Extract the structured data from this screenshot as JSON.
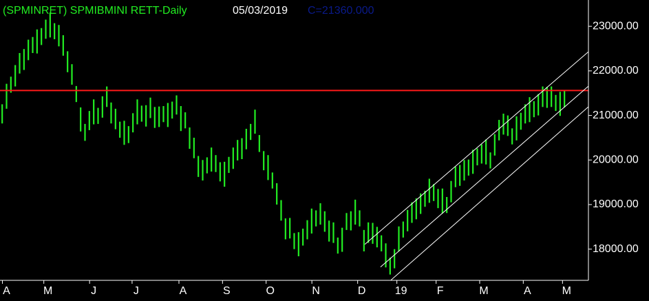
{
  "chart_data": {
    "type": "range_bar",
    "title": "(SPMINRET) SPMIBMINI RETT-Daily",
    "date": "05/03/2019",
    "last_close": "C=21360.000",
    "background": "#000000",
    "xlim": [
      0,
      270
    ],
    "ylim": [
      17300,
      23590
    ],
    "xticks": [
      {
        "value": 3,
        "label": "A"
      },
      {
        "value": 22,
        "label": "M"
      },
      {
        "value": 43,
        "label": "J"
      },
      {
        "value": 62.5,
        "label": "J"
      },
      {
        "value": 84,
        "label": "A"
      },
      {
        "value": 104,
        "label": "S"
      },
      {
        "value": 124,
        "label": "O"
      },
      {
        "value": 145,
        "label": "N"
      },
      {
        "value": 166,
        "label": "D"
      },
      {
        "value": 184,
        "label": "19"
      },
      {
        "value": 202,
        "label": "F"
      },
      {
        "value": 222,
        "label": "M"
      },
      {
        "value": 242,
        "label": "A"
      },
      {
        "value": 260,
        "label": "M"
      }
    ],
    "yticks": [
      {
        "value": 18000,
        "label": "18000.00"
      },
      {
        "value": 19000,
        "label": "19000.00"
      },
      {
        "value": 20000,
        "label": "20000.00"
      },
      {
        "value": 21000,
        "label": "21000.00"
      },
      {
        "value": 22000,
        "label": "22000.00"
      },
      {
        "value": 23000,
        "label": "23000.00"
      }
    ],
    "hline": {
      "value": 21560,
      "color": "#ff1a1a"
    },
    "trend_lines": [
      {
        "x": [
          167.4,
          270
        ],
        "y": [
          18108,
          22429
        ],
        "color": "#ffffff"
      },
      {
        "x": [
          174.6,
          270
        ],
        "y": [
          17599,
          21657
        ],
        "color": "#ffffff"
      },
      {
        "x": [
          179.4,
          270
        ],
        "y": [
          17306,
          21194
        ],
        "color": "#ffffff"
      }
    ],
    "series": [
      {
        "color": "#22ee22",
        "x": [
          1,
          3,
          5,
          7,
          9,
          11,
          13,
          15,
          17,
          19,
          21,
          23,
          25,
          27,
          29,
          31,
          33,
          35,
          37,
          39,
          41,
          43,
          45,
          47,
          49,
          51,
          53,
          55,
          57,
          59,
          61,
          63,
          65,
          67,
          69,
          71,
          73,
          75,
          77,
          79,
          81,
          83,
          85,
          87,
          89,
          91,
          93,
          95,
          97,
          99,
          101,
          103,
          105,
          107,
          109,
          111,
          113,
          115,
          117,
          119,
          121,
          123,
          125,
          127,
          129,
          131,
          133,
          135,
          137,
          139,
          141,
          143,
          145,
          147,
          149,
          151,
          153,
          155,
          157,
          159,
          161,
          163,
          165,
          167,
          169,
          171,
          173,
          175,
          177,
          179,
          181,
          183,
          185,
          187,
          189,
          191,
          193,
          195,
          197,
          199,
          201,
          203,
          205,
          207,
          209,
          211,
          213,
          215,
          217,
          219,
          221,
          223,
          225,
          227,
          229,
          231,
          233,
          235,
          237,
          239,
          241,
          243,
          245,
          247,
          249,
          251,
          253,
          255,
          257,
          259
        ],
        "high": [
          21250,
          21710,
          21870,
          22130,
          22400,
          22490,
          22700,
          22760,
          22930,
          22960,
          23150,
          23310,
          23070,
          23030,
          22800,
          22440,
          22150,
          21660,
          21180,
          20810,
          21100,
          21360,
          21170,
          21430,
          21650,
          21290,
          21150,
          20860,
          20880,
          20760,
          21050,
          21360,
          21220,
          21230,
          21400,
          21190,
          21200,
          21210,
          21280,
          21310,
          21450,
          21210,
          21070,
          20730,
          20500,
          20090,
          20000,
          20060,
          20280,
          20110,
          19950,
          19960,
          20070,
          20280,
          20450,
          20490,
          20700,
          20810,
          21130,
          20560,
          20200,
          20110,
          19720,
          19480,
          19100,
          18690,
          18700,
          18360,
          18380,
          18460,
          18650,
          18910,
          18870,
          19030,
          18850,
          18640,
          18600,
          18260,
          18480,
          18810,
          18850,
          19110,
          18870,
          18430,
          18600,
          18590,
          18500,
          18310,
          18130,
          17810,
          18000,
          18510,
          18620,
          18880,
          19050,
          19140,
          19250,
          19310,
          19580,
          19460,
          19350,
          19360,
          19170,
          19530,
          19850,
          19890,
          20000,
          20010,
          20230,
          20260,
          20350,
          20460,
          20170,
          20580,
          20900,
          21040,
          21000,
          20710,
          20980,
          21060,
          21250,
          21410,
          21320,
          21480,
          21650,
          21640,
          21650,
          21460,
          21530,
          21560
        ],
        "low": [
          20820,
          21150,
          21510,
          21650,
          21940,
          22020,
          22240,
          22400,
          22390,
          22580,
          22720,
          22750,
          22710,
          22550,
          22340,
          21970,
          21690,
          21300,
          20640,
          20430,
          20670,
          20800,
          20810,
          20950,
          21190,
          20820,
          20690,
          20500,
          20340,
          20380,
          20620,
          20800,
          20860,
          20750,
          20940,
          20720,
          20740,
          20850,
          20740,
          20930,
          21020,
          20650,
          20710,
          20250,
          20040,
          19620,
          19540,
          19700,
          19740,
          19730,
          19520,
          19400,
          19710,
          19800,
          19990,
          20020,
          20240,
          20450,
          20590,
          20180,
          19770,
          19550,
          19360,
          19000,
          18640,
          18220,
          18240,
          18000,
          17840,
          18080,
          18220,
          18350,
          18510,
          18550,
          18390,
          18170,
          18140,
          17900,
          17940,
          18430,
          18420,
          18550,
          18510,
          17950,
          18140,
          18120,
          18040,
          17950,
          17590,
          17430,
          17570,
          17950,
          18260,
          18400,
          18590,
          18670,
          18790,
          18950,
          19040,
          19080,
          18920,
          18800,
          18810,
          19050,
          19390,
          19420,
          19540,
          19650,
          19690,
          19880,
          19920,
          19900,
          19810,
          20100,
          20440,
          20570,
          20540,
          20350,
          20440,
          20680,
          20820,
          20850,
          20960,
          21000,
          21190,
          21170,
          21190,
          21100,
          20990,
          21180
        ]
      }
    ]
  }
}
